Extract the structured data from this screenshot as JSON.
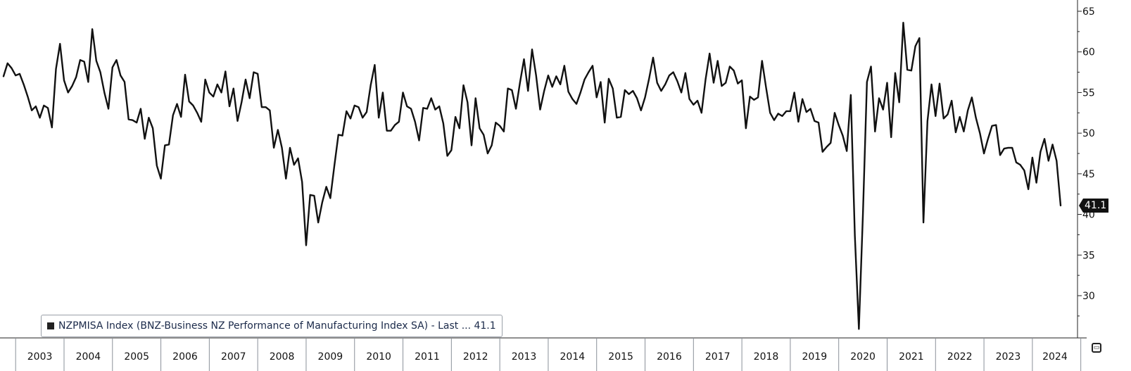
{
  "chart_data": {
    "type": "line",
    "x_start": "2002-10",
    "series": [
      {
        "name": "NZPMISA Index",
        "color": "#111111",
        "values": [
          57.0,
          58.6,
          58.0,
          57.1,
          57.3,
          56.0,
          54.5,
          52.8,
          53.3,
          51.9,
          53.4,
          53.1,
          50.7,
          57.9,
          61.0,
          56.5,
          55.0,
          55.8,
          56.9,
          59.0,
          58.8,
          56.3,
          62.8,
          58.9,
          57.5,
          55.0,
          53.0,
          58.1,
          59.0,
          57.1,
          56.3,
          51.7,
          51.6,
          51.3,
          53.0,
          49.3,
          51.9,
          50.6,
          46.0,
          44.4,
          48.5,
          48.6,
          52.2,
          53.6,
          52.0,
          57.2,
          53.9,
          53.4,
          52.5,
          51.4,
          56.6,
          55.0,
          54.5,
          56.0,
          55.0,
          57.6,
          53.3,
          55.5,
          51.5,
          53.8,
          56.6,
          54.3,
          57.5,
          57.3,
          53.2,
          53.2,
          52.8,
          48.2,
          50.4,
          48.2,
          44.4,
          48.2,
          46.1,
          46.9,
          44.0,
          36.2,
          42.4,
          42.3,
          39.0,
          41.5,
          43.4,
          42.0,
          46.0,
          49.8,
          49.7,
          52.7,
          51.8,
          53.4,
          53.2,
          51.9,
          52.6,
          55.9,
          58.4,
          51.9,
          55.0,
          50.3,
          50.3,
          51.0,
          51.4,
          55.0,
          53.3,
          53.0,
          51.4,
          49.1,
          53.1,
          53.0,
          54.3,
          52.9,
          53.3,
          51.2,
          47.2,
          47.9,
          52.0,
          50.6,
          55.9,
          53.8,
          48.5,
          54.3,
          50.6,
          49.8,
          47.5,
          48.5,
          51.3,
          50.9,
          50.2,
          55.5,
          55.3,
          53.0,
          56.2,
          59.1,
          55.2,
          60.3,
          57.1,
          52.9,
          55.2,
          57.1,
          55.7,
          57.0,
          56.0,
          58.3,
          55.1,
          54.2,
          53.6,
          55.0,
          56.6,
          57.5,
          58.3,
          54.4,
          56.3,
          51.3,
          56.7,
          55.5,
          51.9,
          52.0,
          55.3,
          54.8,
          55.2,
          54.3,
          52.8,
          54.4,
          56.7,
          59.3,
          56.2,
          55.2,
          56.0,
          57.1,
          57.5,
          56.4,
          55.0,
          57.4,
          54.2,
          53.5,
          54.0,
          52.5,
          56.6,
          59.8,
          56.2,
          58.9,
          55.8,
          56.2,
          58.2,
          57.7,
          56.1,
          56.5,
          50.6,
          54.5,
          54.1,
          54.4,
          58.9,
          55.6,
          52.5,
          51.6,
          52.4,
          52.1,
          52.7,
          52.7,
          55.0,
          51.4,
          54.2,
          52.6,
          53.0,
          51.5,
          51.3,
          47.7,
          48.3,
          48.8,
          52.5,
          51.0,
          49.7,
          47.8,
          54.7,
          37.4,
          25.9,
          40.0,
          56.3,
          58.2,
          50.2,
          54.3,
          52.9,
          56.2,
          49.5,
          57.4,
          53.8,
          63.6,
          57.8,
          57.7,
          60.7,
          61.7,
          39.0,
          51.5,
          56.0,
          52.1,
          56.1,
          51.8,
          52.3,
          54.0,
          50.1,
          52.0,
          50.2,
          52.8,
          54.4,
          51.9,
          50.0,
          47.5,
          49.3,
          50.9,
          51.0,
          47.3,
          48.1,
          48.2,
          48.2,
          46.4,
          46.1,
          45.4,
          43.1,
          47.0,
          43.9,
          47.7,
          49.3,
          46.6,
          48.6,
          46.6,
          41.1
        ]
      }
    ],
    "x_tick_labels": [
      "2003",
      "2004",
      "2005",
      "2006",
      "2007",
      "2008",
      "2009",
      "2010",
      "2011",
      "2012",
      "2013",
      "2014",
      "2015",
      "2016",
      "2017",
      "2018",
      "2019",
      "2020",
      "2021",
      "2022",
      "2023",
      "2024"
    ],
    "y_tick_labels": [
      "30",
      "35",
      "40",
      "45",
      "50",
      "55",
      "60",
      "65"
    ],
    "y_ticks": [
      30,
      35,
      40,
      45,
      50,
      55,
      60,
      65
    ],
    "ylim": [
      25.5,
      66.0
    ],
    "y_axis_side": "right",
    "grid": false,
    "legend_placement": "bottom-left",
    "last_value_label": "41.1"
  },
  "legend": {
    "text": "NZPMISA Index (BNZ-Business NZ Performance of Manufacturing Index SA) - Last ... 41.1"
  },
  "colors": {
    "line": "#111111",
    "axis": "#222222",
    "legend_border": "#9aa0a8",
    "legend_text": "#1b2a4a",
    "background": "#ffffff"
  },
  "corner_icon": "collapse-icon"
}
